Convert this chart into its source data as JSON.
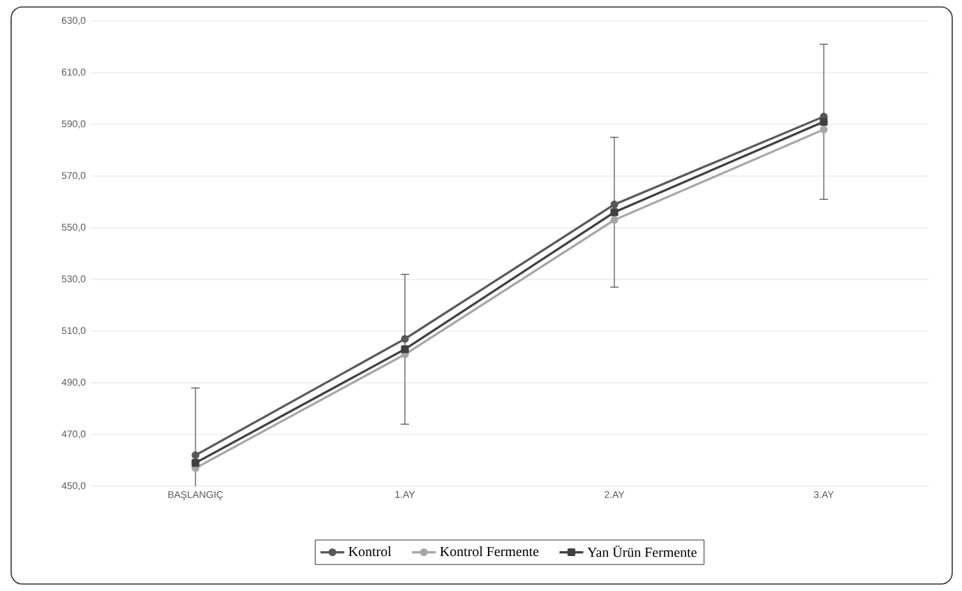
{
  "chart_data": {
    "type": "line",
    "categories": [
      "BAŞLANGIÇ",
      "1.AY",
      "2.AY",
      "3.AY"
    ],
    "series": [
      {
        "name": "Kontrol",
        "color": "#595959",
        "marker": "circle",
        "values": [
          462,
          507,
          559,
          593
        ]
      },
      {
        "name": "Kontrol Fermente",
        "color": "#a6a6a6",
        "marker": "circle",
        "values": [
          457,
          501,
          553,
          588
        ]
      },
      {
        "name": "Yan Ürün Fermente",
        "color": "#404040",
        "marker": "square",
        "values": [
          459,
          503,
          556,
          591
        ],
        "errors": [
          29,
          29,
          29,
          30
        ]
      }
    ],
    "ylim": [
      450,
      630
    ],
    "yticks": [
      {
        "value": 450,
        "label": "450,0"
      },
      {
        "value": 470,
        "label": "470,0"
      },
      {
        "value": 490,
        "label": "490,0"
      },
      {
        "value": 510,
        "label": "510,0"
      },
      {
        "value": 530,
        "label": "530,0"
      },
      {
        "value": 550,
        "label": "550,0"
      },
      {
        "value": 570,
        "label": "570,0"
      },
      {
        "value": 590,
        "label": "590,0"
      },
      {
        "value": 610,
        "label": "610,0"
      },
      {
        "value": 630,
        "label": "630,0"
      }
    ],
    "grid": "y",
    "legend": "bottom",
    "line_style": "solid"
  }
}
